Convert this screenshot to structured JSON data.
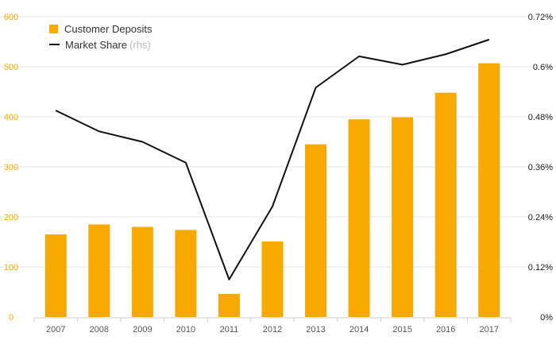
{
  "chart_data": {
    "type": "bar",
    "categories": [
      "2007",
      "2008",
      "2009",
      "2010",
      "2011",
      "2012",
      "2013",
      "2014",
      "2015",
      "2016",
      "2017"
    ],
    "series": [
      {
        "name": "Customer Deposits",
        "kind": "bar",
        "axis": "left",
        "color": "#f7a900",
        "values": [
          165,
          185,
          180,
          174,
          46,
          151,
          345,
          395,
          399,
          448,
          507
        ]
      },
      {
        "name": "Market Share",
        "note": "(rhs)",
        "kind": "line",
        "axis": "right",
        "color": "#111111",
        "values": [
          0.495,
          0.445,
          0.42,
          0.37,
          0.09,
          0.265,
          0.55,
          0.625,
          0.605,
          0.63,
          0.665
        ]
      }
    ],
    "left_axis": {
      "min": 0,
      "max": 600,
      "ticks": [
        "0",
        "100",
        "200",
        "300",
        "400",
        "500",
        "600"
      ],
      "color": "#f7a900"
    },
    "right_axis": {
      "min": 0,
      "max": 0.72,
      "ticks": [
        "0%",
        "0.12%",
        "0.24%",
        "0.36%",
        "0.48%",
        "0.6%",
        "0.72%"
      ],
      "color": "#222222"
    },
    "grid": true,
    "legend_position": "top-left"
  }
}
